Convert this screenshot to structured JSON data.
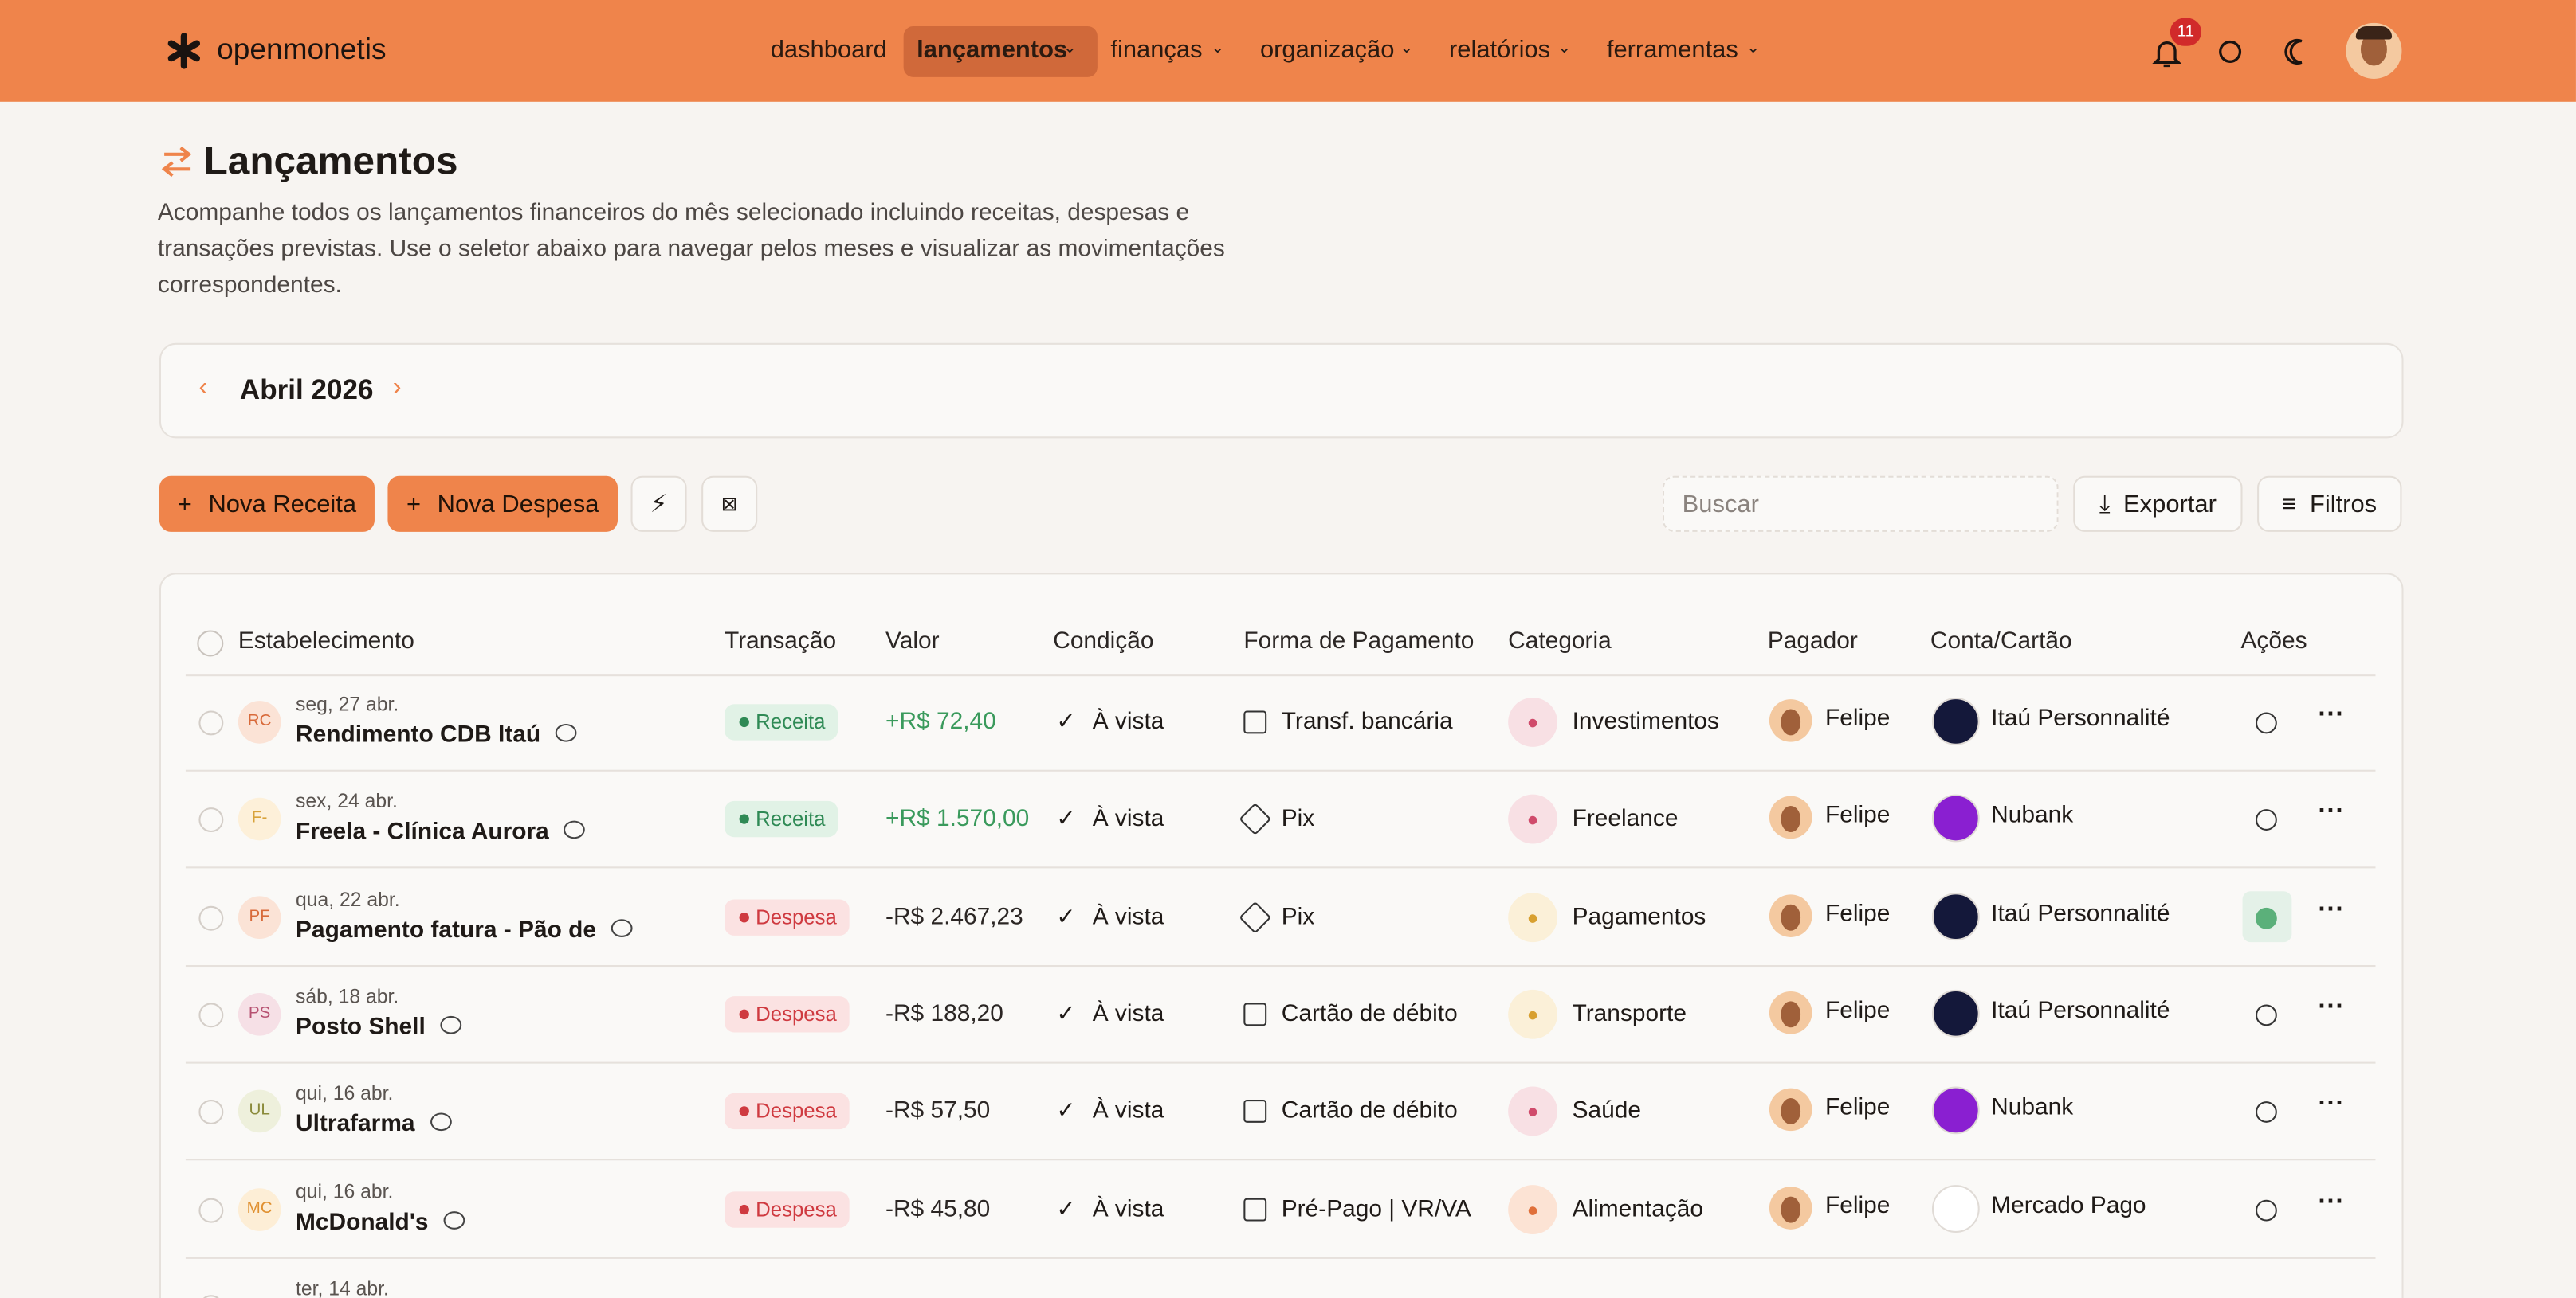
{
  "nav": {
    "brand": "openmonetis",
    "items": [
      "dashboard",
      "lançamentos",
      "finanças",
      "organização",
      "relatórios",
      "ferramentas"
    ],
    "notifications": "11"
  },
  "header": {
    "title": "Lançamentos",
    "description": "Acompanhe todos os lançamentos financeiros do mês selecionado incluindo receitas, despesas e transações previstas. Use o seletor abaixo para navegar pelos meses e visualizar as movimentações correspondentes."
  },
  "month": "Abril 2026",
  "toolbar": {
    "new_income": "Nova Receita",
    "new_expense": "Nova Despesa",
    "search": "Buscar",
    "export": "Exportar",
    "filters": "Filtros"
  },
  "table": {
    "columns": [
      "Estabelecimento",
      "Transação",
      "Valor",
      "Condição",
      "Forma de Pagamento",
      "Categoria",
      "Pagador",
      "Conta/Cartão",
      "Ações"
    ],
    "rows": [
      {
        "initials": "RC",
        "date": "seg, 27 abr.",
        "name": "Rendimento CDB Itaú",
        "type": "Receita",
        "value": "+R$ 72,40",
        "condition": "À vista",
        "payment": "Transf. bancária",
        "category": "Investimentos",
        "payer": "Felipe",
        "account": "Itaú Personnalité"
      },
      {
        "initials": "F-",
        "date": "sex, 24 abr.",
        "name": "Freela - Clínica Aurora",
        "type": "Receita",
        "value": "+R$ 1.570,00",
        "condition": "À vista",
        "payment": "Pix",
        "category": "Freelance",
        "payer": "Felipe",
        "account": "Nubank"
      },
      {
        "initials": "PF",
        "date": "qua, 22 abr.",
        "name": "Pagamento fatura - Pão de",
        "type": "Despesa",
        "value": "-R$ 2.467,23",
        "condition": "À vista",
        "payment": "Pix",
        "category": "Pagamentos",
        "payer": "Felipe",
        "account": "Itaú Personnalité"
      },
      {
        "initials": "PS",
        "date": "sáb, 18 abr.",
        "name": "Posto Shell",
        "type": "Despesa",
        "value": "-R$ 188,20",
        "condition": "À vista",
        "payment": "Cartão de débito",
        "category": "Transporte",
        "payer": "Felipe",
        "account": "Itaú Personnalité"
      },
      {
        "initials": "UL",
        "date": "qui, 16 abr.",
        "name": "Ultrafarma",
        "type": "Despesa",
        "value": "-R$ 57,50",
        "condition": "À vista",
        "payment": "Cartão de débito",
        "category": "Saúde",
        "payer": "Felipe",
        "account": "Nubank"
      },
      {
        "initials": "MC",
        "date": "qui, 16 abr.",
        "name": "McDonald's",
        "type": "Despesa",
        "value": "-R$ 45,80",
        "condition": "À vista",
        "payment": "Pré-Pago | VR/VA",
        "category": "Alimentação",
        "payer": "Felipe",
        "account": "Mercado Pago"
      },
      {
        "date": "ter, 14 abr."
      }
    ]
  }
}
